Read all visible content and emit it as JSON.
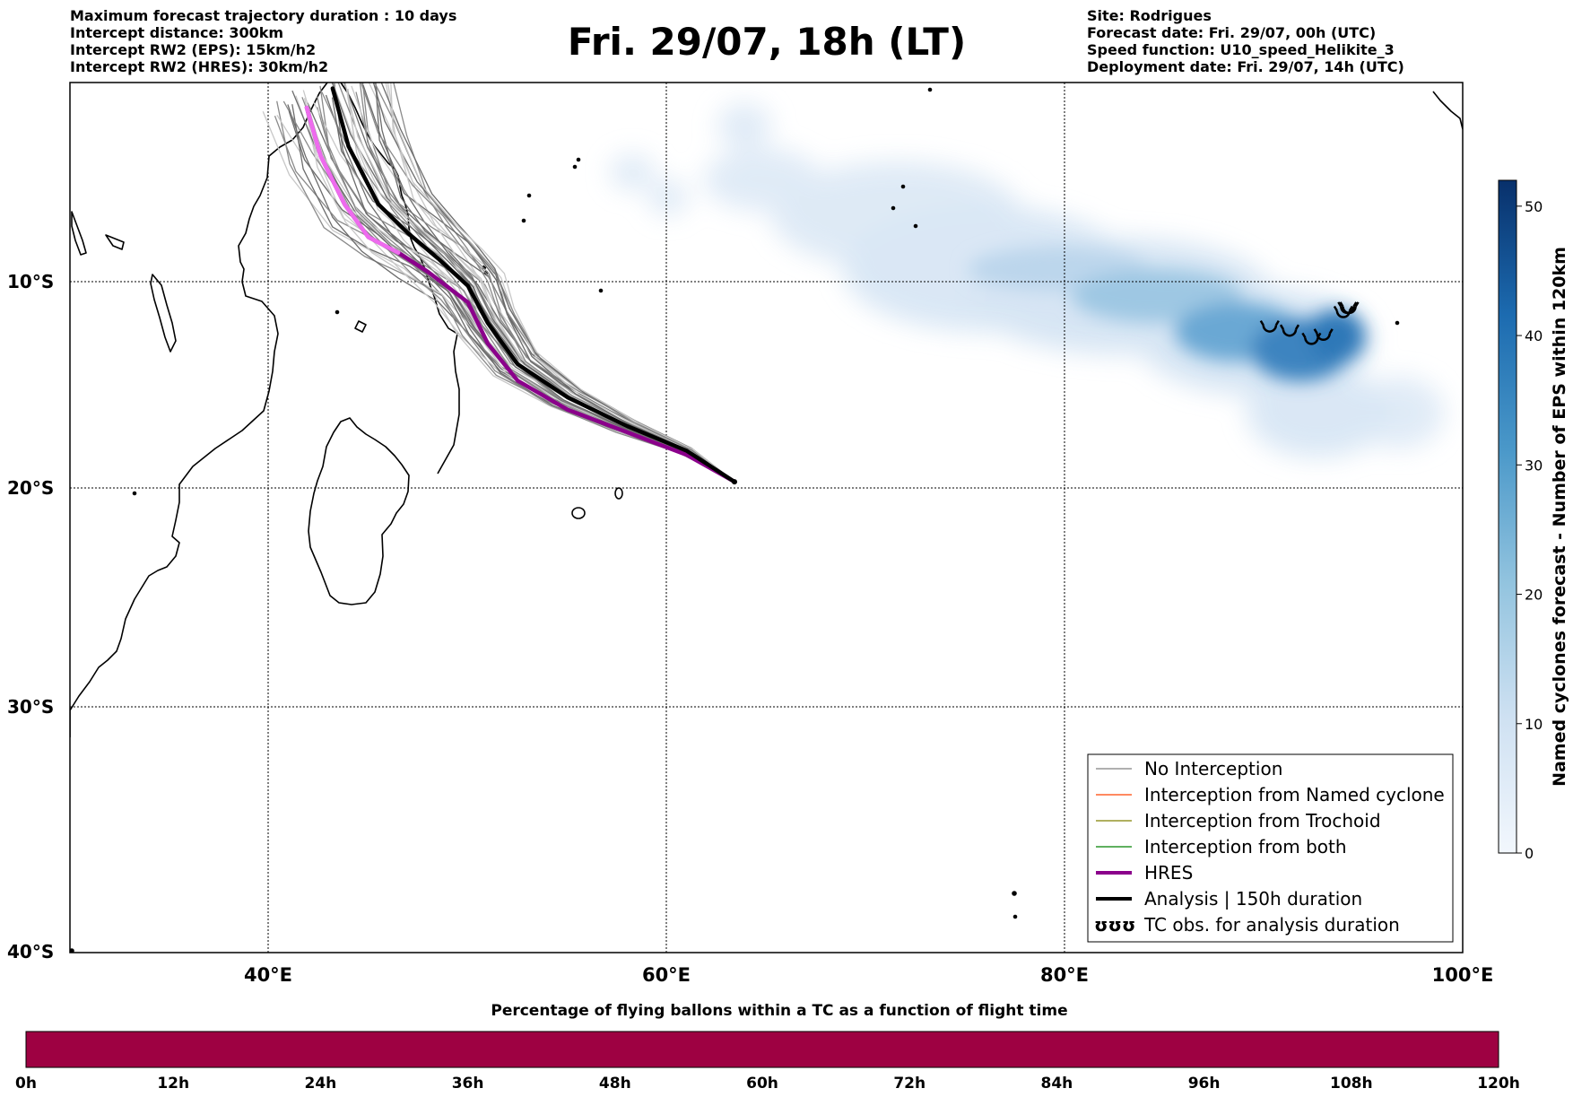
{
  "header": {
    "left_lines": [
      "Maximum forecast trajectory duration : 10 days",
      "Intercept distance: 300km",
      "Intercept RW2 (EPS):  15km/h2",
      "Intercept RW2 (HRES): 30km/h2"
    ],
    "title": "Fri. 29/07, 18h (LT)",
    "right_lines": [
      "Site: Rodrigues",
      "Forecast date: Fri. 29/07, 00h (UTC)",
      "Speed function: U10_speed_Helikite_3",
      "Deployment date: Fri. 29/07, 14h (UTC)"
    ]
  },
  "map": {
    "lat_labels": [
      "10°S",
      "20°S",
      "30°S",
      "40°S"
    ],
    "lon_labels": [
      "40°E",
      "60°E",
      "80°E",
      "100°E"
    ],
    "lat_values": [
      -10,
      -20,
      -30,
      -40
    ],
    "lon_values": [
      40,
      60,
      80,
      100
    ],
    "lon_range": [
      30,
      100
    ],
    "lat_range": [
      -40.1,
      0.3
    ],
    "grid": "dotted",
    "launch_site": {
      "lon": 63.4,
      "lat": -19.7
    },
    "hres_track": [
      [
        63.4,
        -19.7
      ],
      [
        61,
        -18.4
      ],
      [
        58,
        -17.3
      ],
      [
        55,
        -16.2
      ],
      [
        52.5,
        -14.8
      ],
      [
        51,
        -13
      ],
      [
        50,
        -11
      ],
      [
        48,
        -9.5
      ],
      [
        46.5,
        -8.5
      ],
      [
        45,
        -7.7
      ],
      [
        43.8,
        -6
      ],
      [
        42.6,
        -3.5
      ],
      [
        41.9,
        -1
      ]
    ],
    "analysis_track": [
      [
        63.4,
        -19.7
      ],
      [
        61,
        -18.2
      ],
      [
        58,
        -17
      ],
      [
        55,
        -15.6
      ],
      [
        52.5,
        -14
      ],
      [
        51,
        -12
      ],
      [
        50,
        -10.2
      ],
      [
        48.5,
        -8.8
      ],
      [
        47,
        -7.5
      ],
      [
        45.5,
        -6
      ],
      [
        44,
        -3
      ],
      [
        43.2,
        0
      ]
    ],
    "tc_obs": [
      [
        90.3,
        -12.2
      ],
      [
        91.3,
        -12.4
      ],
      [
        92.4,
        -12.8
      ],
      [
        93,
        -12.6
      ],
      [
        94,
        -11.5
      ],
      [
        94.2,
        -11.3
      ],
      [
        94.3,
        -11.3
      ]
    ],
    "density_colormap": {
      "low": "#e4eff9",
      "mid": "#4292c6",
      "high": "#08306b"
    }
  },
  "colorbar": {
    "title": "Named cyclones forecast - Number of EPS within 120km",
    "ticks": [
      "0",
      "10",
      "20",
      "30",
      "40",
      "50"
    ],
    "range": [
      0,
      52
    ]
  },
  "legend": {
    "items": [
      {
        "label": "No Interception",
        "color": "#808080",
        "style": "thin"
      },
      {
        "label": "Interception from Named cyclone",
        "color": "#ff4500",
        "style": "thin"
      },
      {
        "label": "Interception from Trochoid",
        "color": "#808000",
        "style": "thin"
      },
      {
        "label": "Interception from both",
        "color": "#008000",
        "style": "thin"
      },
      {
        "label": "HRES",
        "color": "#8b008b",
        "style": "thick"
      },
      {
        "label": "Analysis | 150h duration",
        "color": "#000000",
        "style": "thick"
      },
      {
        "label": "TC obs. for analysis duration",
        "color": "#000000",
        "style": "symbol"
      }
    ],
    "symbol_text": "ʊʊʊ"
  },
  "bottom_bar": {
    "title": "Percentage of flying ballons within a TC as a function of flight time",
    "ticks": [
      "0h",
      "12h",
      "24h",
      "36h",
      "48h",
      "60h",
      "72h",
      "84h",
      "96h",
      "108h",
      "120h"
    ],
    "fill_color": "#9e0142"
  }
}
